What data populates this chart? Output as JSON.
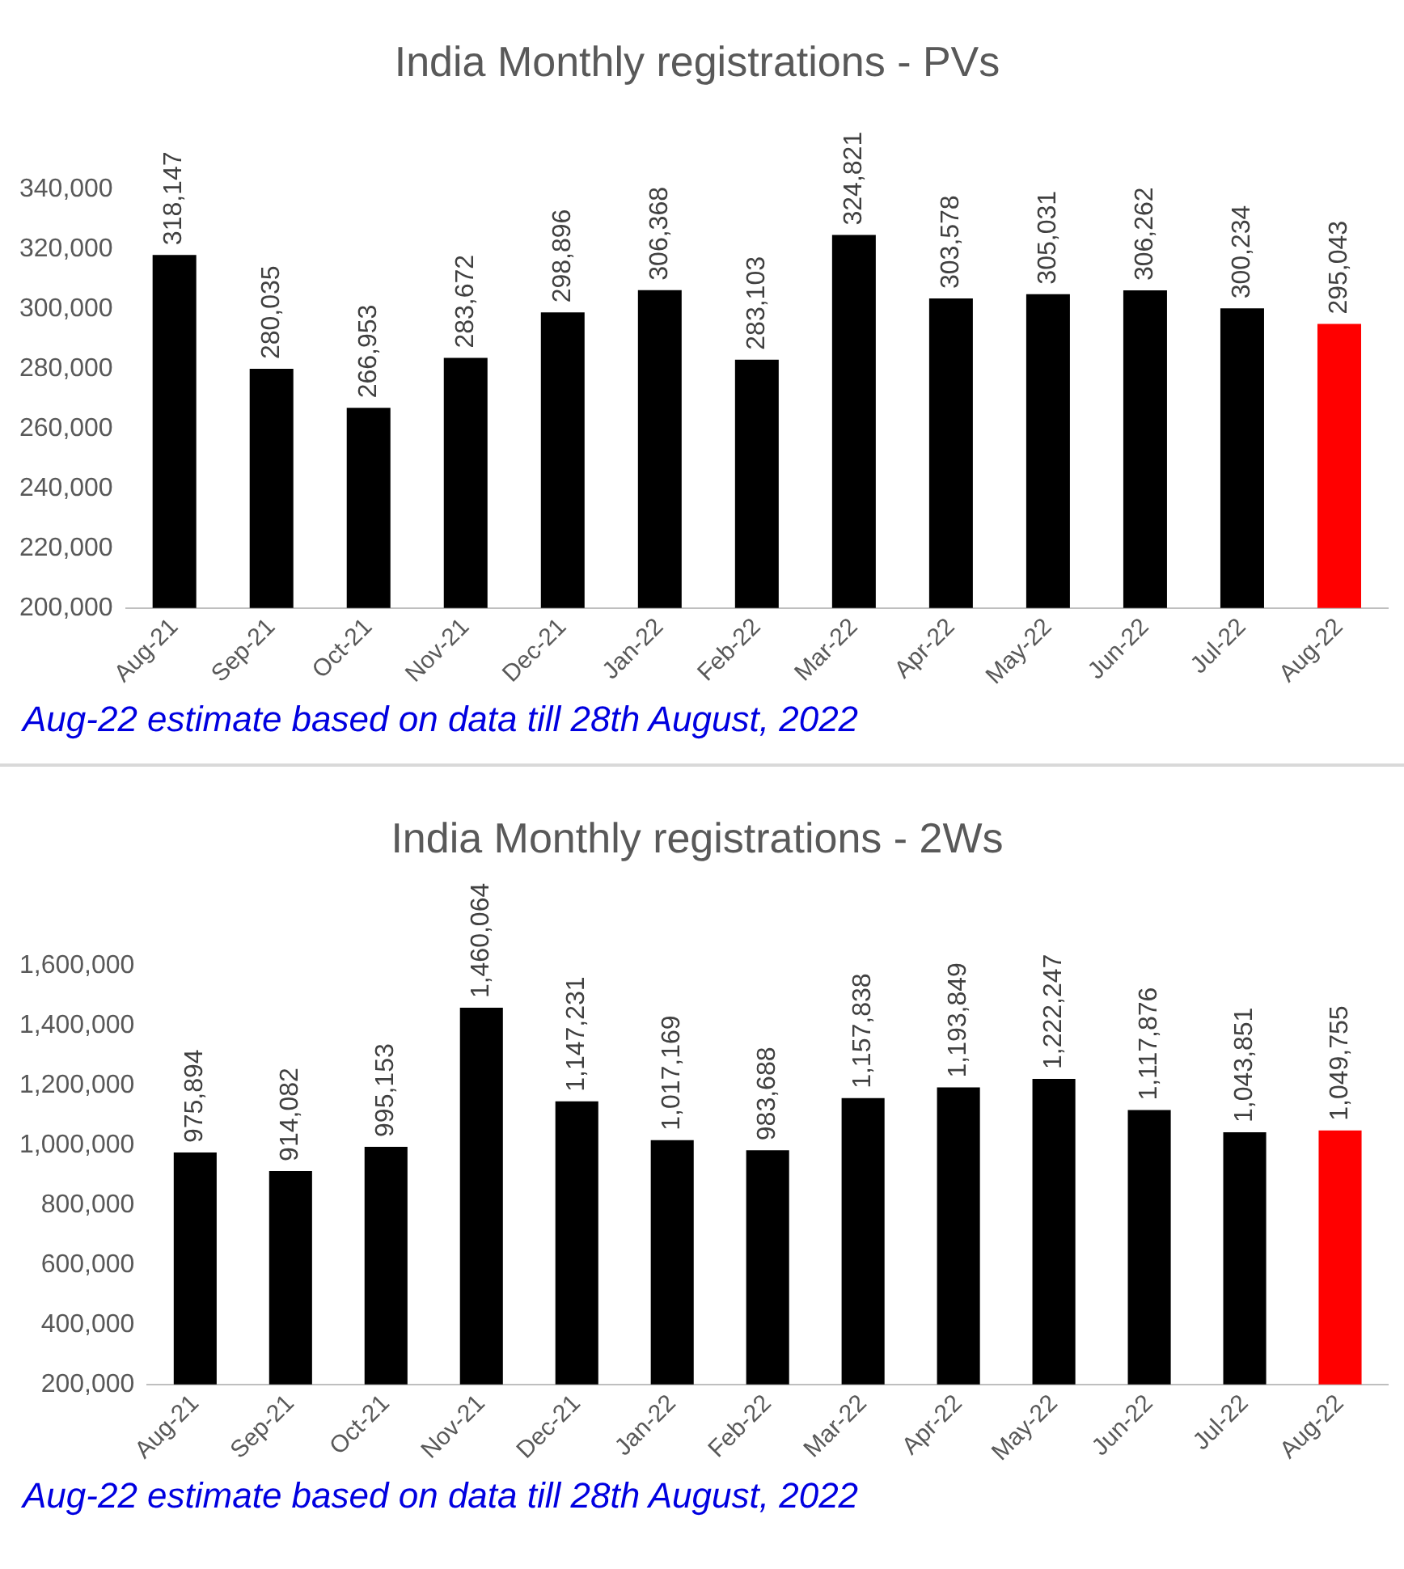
{
  "chart_data": [
    {
      "type": "bar",
      "title": "India Monthly registrations - PVs",
      "categories": [
        "Aug-21",
        "Sep-21",
        "Oct-21",
        "Nov-21",
        "Dec-21",
        "Jan-22",
        "Feb-22",
        "Mar-22",
        "Apr-22",
        "May-22",
        "Jun-22",
        "Jul-22",
        "Aug-22"
      ],
      "values": [
        318147,
        280035,
        266953,
        283672,
        298896,
        306368,
        283103,
        324821,
        303578,
        305031,
        306262,
        300234,
        295043
      ],
      "value_labels": [
        "318,147",
        "280,035",
        "266,953",
        "283,672",
        "298,896",
        "306,368",
        "283,103",
        "324,821",
        "303,578",
        "305,031",
        "306,262",
        "300,234",
        "295,043"
      ],
      "colors": [
        "#000000",
        "#000000",
        "#000000",
        "#000000",
        "#000000",
        "#000000",
        "#000000",
        "#000000",
        "#000000",
        "#000000",
        "#000000",
        "#000000",
        "#ff0000"
      ],
      "ylim": [
        200000,
        340000
      ],
      "yticks": [
        {
          "value": 200000,
          "label": "200,000"
        },
        {
          "value": 220000,
          "label": "220,000"
        },
        {
          "value": 240000,
          "label": "240,000"
        },
        {
          "value": 260000,
          "label": "260,000"
        },
        {
          "value": 280000,
          "label": "280,000"
        },
        {
          "value": 300000,
          "label": "300,000"
        },
        {
          "value": 320000,
          "label": "320,000"
        },
        {
          "value": 340000,
          "label": "340,000"
        }
      ],
      "grid": false,
      "legend": false,
      "annotations": [
        "Aug-22 estimate based on data till 28th August, 2022"
      ]
    },
    {
      "type": "bar",
      "title": "India Monthly registrations - 2Ws",
      "categories": [
        "Aug-21",
        "Sep-21",
        "Oct-21",
        "Nov-21",
        "Dec-21",
        "Jan-22",
        "Feb-22",
        "Mar-22",
        "Apr-22",
        "May-22",
        "Jun-22",
        "Jul-22",
        "Aug-22"
      ],
      "values": [
        975894,
        914082,
        995153,
        1460064,
        1147231,
        1017169,
        983688,
        1157838,
        1193849,
        1222247,
        1117876,
        1043851,
        1049755
      ],
      "value_labels": [
        "975,894",
        "914,082",
        "995,153",
        "1,460,064",
        "1,147,231",
        "1,017,169",
        "983,688",
        "1,157,838",
        "1,193,849",
        "1,222,247",
        "1,117,876",
        "1,043,851",
        "1,049,755"
      ],
      "colors": [
        "#000000",
        "#000000",
        "#000000",
        "#000000",
        "#000000",
        "#000000",
        "#000000",
        "#000000",
        "#000000",
        "#000000",
        "#000000",
        "#000000",
        "#ff0000"
      ],
      "ylim": [
        200000,
        1600000
      ],
      "yticks": [
        {
          "value": 200000,
          "label": "200,000"
        },
        {
          "value": 400000,
          "label": "400,000"
        },
        {
          "value": 600000,
          "label": "600,000"
        },
        {
          "value": 800000,
          "label": "800,000"
        },
        {
          "value": 1000000,
          "label": "1,000,000"
        },
        {
          "value": 1200000,
          "label": "1,200,000"
        },
        {
          "value": 1400000,
          "label": "1,400,000"
        },
        {
          "value": 1600000,
          "label": "1,600,000"
        }
      ],
      "grid": false,
      "legend": false,
      "annotations": [
        "Aug-22 estimate based on data till 28th August, 2022"
      ]
    }
  ]
}
